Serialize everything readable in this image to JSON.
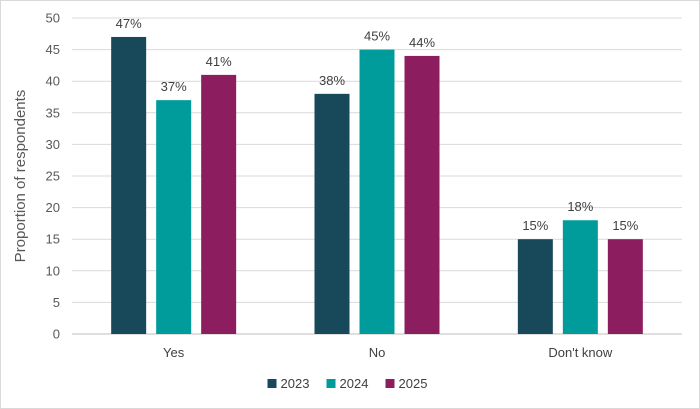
{
  "chart_data": {
    "type": "bar",
    "ylabel": "Proportion of respondents",
    "xlabel": "",
    "ylim": [
      0,
      50
    ],
    "yticks": [
      0,
      5,
      10,
      15,
      20,
      25,
      30,
      35,
      40,
      45,
      50
    ],
    "grid": true,
    "legend_position": "bottom",
    "categories": [
      "Yes",
      "No",
      "Don't know"
    ],
    "series": [
      {
        "name": "2023",
        "color": "#17495a",
        "values": [
          47,
          38,
          15
        ],
        "labels": [
          "47%",
          "38%",
          "15%"
        ]
      },
      {
        "name": "2024",
        "color": "#009b9b",
        "values": [
          37,
          45,
          18
        ],
        "labels": [
          "37%",
          "45%",
          "18%"
        ]
      },
      {
        "name": "2025",
        "color": "#8c1d5f",
        "values": [
          41,
          44,
          15
        ],
        "labels": [
          "41%",
          "44%",
          "15%"
        ]
      }
    ]
  }
}
